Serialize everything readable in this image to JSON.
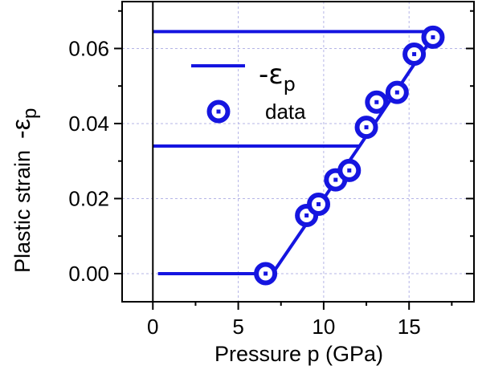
{
  "chart_data": {
    "type": "line",
    "xlabel": "Pressure p (GPa)",
    "ylabel_main": "Plastic strain",
    "ylabel_symbol": "-ε",
    "ylabel_sub": "p",
    "xlim": [
      -1.8,
      18.8
    ],
    "ylim": [
      -0.0075,
      0.0725
    ],
    "x_ticks": [
      "0",
      "5",
      "10",
      "15"
    ],
    "y_ticks": [
      "0.00",
      "0.02",
      "0.04",
      "0.06"
    ],
    "x_tick_values": [
      0,
      5,
      10,
      15
    ],
    "y_tick_values": [
      0.0,
      0.02,
      0.04,
      0.06
    ],
    "grid": true,
    "legend_position": "top-left",
    "colors": {
      "series": "#1515e0",
      "grid": "#b4b4e6",
      "axis": "#000000"
    },
    "legend": [
      {
        "kind": "line",
        "symbol": "-ε",
        "sub": "p"
      },
      {
        "kind": "marker",
        "label": "data"
      }
    ],
    "series": [
      {
        "kind": "line",
        "x": [
          0.3,
          7.0,
          12.1,
          12.1,
          15.7,
          16.4
        ],
        "y": [
          0.0,
          0.0,
          0.034,
          0.034,
          0.0585,
          0.063
        ]
      },
      {
        "kind": "line",
        "x": [
          0.0,
          12.1
        ],
        "y": [
          0.034,
          0.034
        ]
      },
      {
        "kind": "line",
        "x": [
          0.0,
          16.4
        ],
        "y": [
          0.0645,
          0.0645
        ]
      },
      {
        "name": "data",
        "kind": "marker",
        "x": [
          6.6,
          9.0,
          9.7,
          10.7,
          11.5,
          12.5,
          13.1,
          14.3,
          15.3,
          16.4
        ],
        "y": [
          0.0,
          0.0155,
          0.0185,
          0.025,
          0.0275,
          0.039,
          0.0457,
          0.0483,
          0.0585,
          0.063
        ]
      }
    ]
  }
}
